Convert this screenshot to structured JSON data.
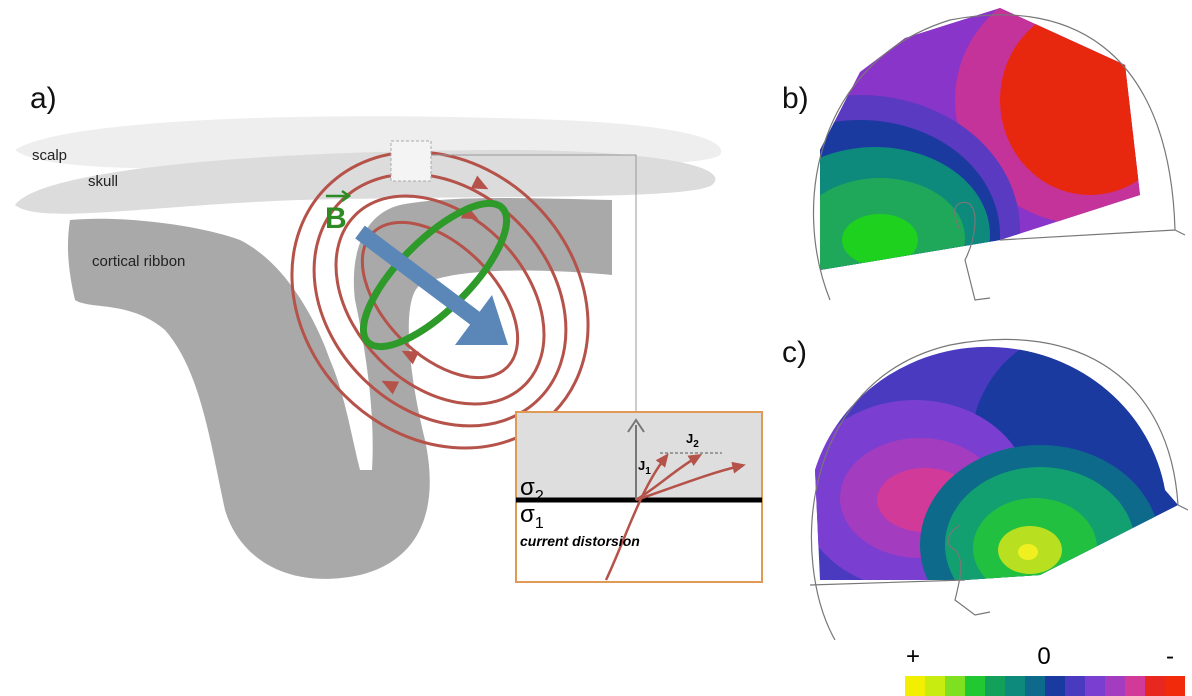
{
  "panels": {
    "a": {
      "label": "a)",
      "scalp": "scalp",
      "skull": "skull",
      "cortex": "cortical ribbon",
      "field": "B",
      "inset": {
        "sigma2": {
          "symbol": "σ",
          "subscript": "2"
        },
        "sigma1": {
          "symbol": "σ",
          "subscript": "1"
        },
        "j1": {
          "symbol": "J",
          "subscript": "1"
        },
        "j2": {
          "symbol": "J",
          "subscript": "2"
        },
        "caption": "current distorsion"
      }
    },
    "b": {
      "label": "b)"
    },
    "c": {
      "label": "c)"
    }
  },
  "colorbar": {
    "plus": "+",
    "zero": "0",
    "minus": "-"
  }
}
